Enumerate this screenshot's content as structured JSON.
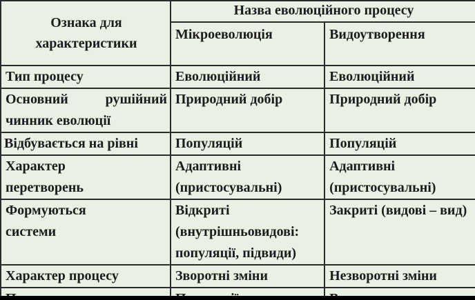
{
  "table": {
    "header": {
      "feature": "Ознака для характеристики",
      "group": "Назва еволюційного процесу",
      "columns": [
        "Мікроеволюція",
        "Видоутворення"
      ]
    },
    "rows": [
      {
        "feature": "Тип процесу",
        "micro": "Еволюційний",
        "speciation": "Еволюційний"
      },
      {
        "feature": "Основний рушійний чинник еволюції",
        "micro": "Природний добір",
        "speciation": "Природний добір"
      },
      {
        "feature": "Відбувається на рівні",
        "micro": "Популяцій",
        "speciation": "Популяцій"
      },
      {
        "feature": "Характер перетворень",
        "micro": "Адаптивні (пристосувальні)",
        "speciation": "Адаптивні (пристосувальні)"
      },
      {
        "feature": "Формуються системи",
        "micro": "Відкриті (внутрішньовидові: популяції, підвиди)",
        "speciation": "Закриті (видові – вид)"
      },
      {
        "feature": "Характер процесу",
        "micro": "Зворотні зміни",
        "speciation": "Незворотні зміни"
      },
      {
        "feature": "Проявляється на",
        "feature_parts": [
          "Проявляється",
          "на"
        ],
        "micro": "Популяції",
        "speciation": "Виду"
      }
    ]
  }
}
